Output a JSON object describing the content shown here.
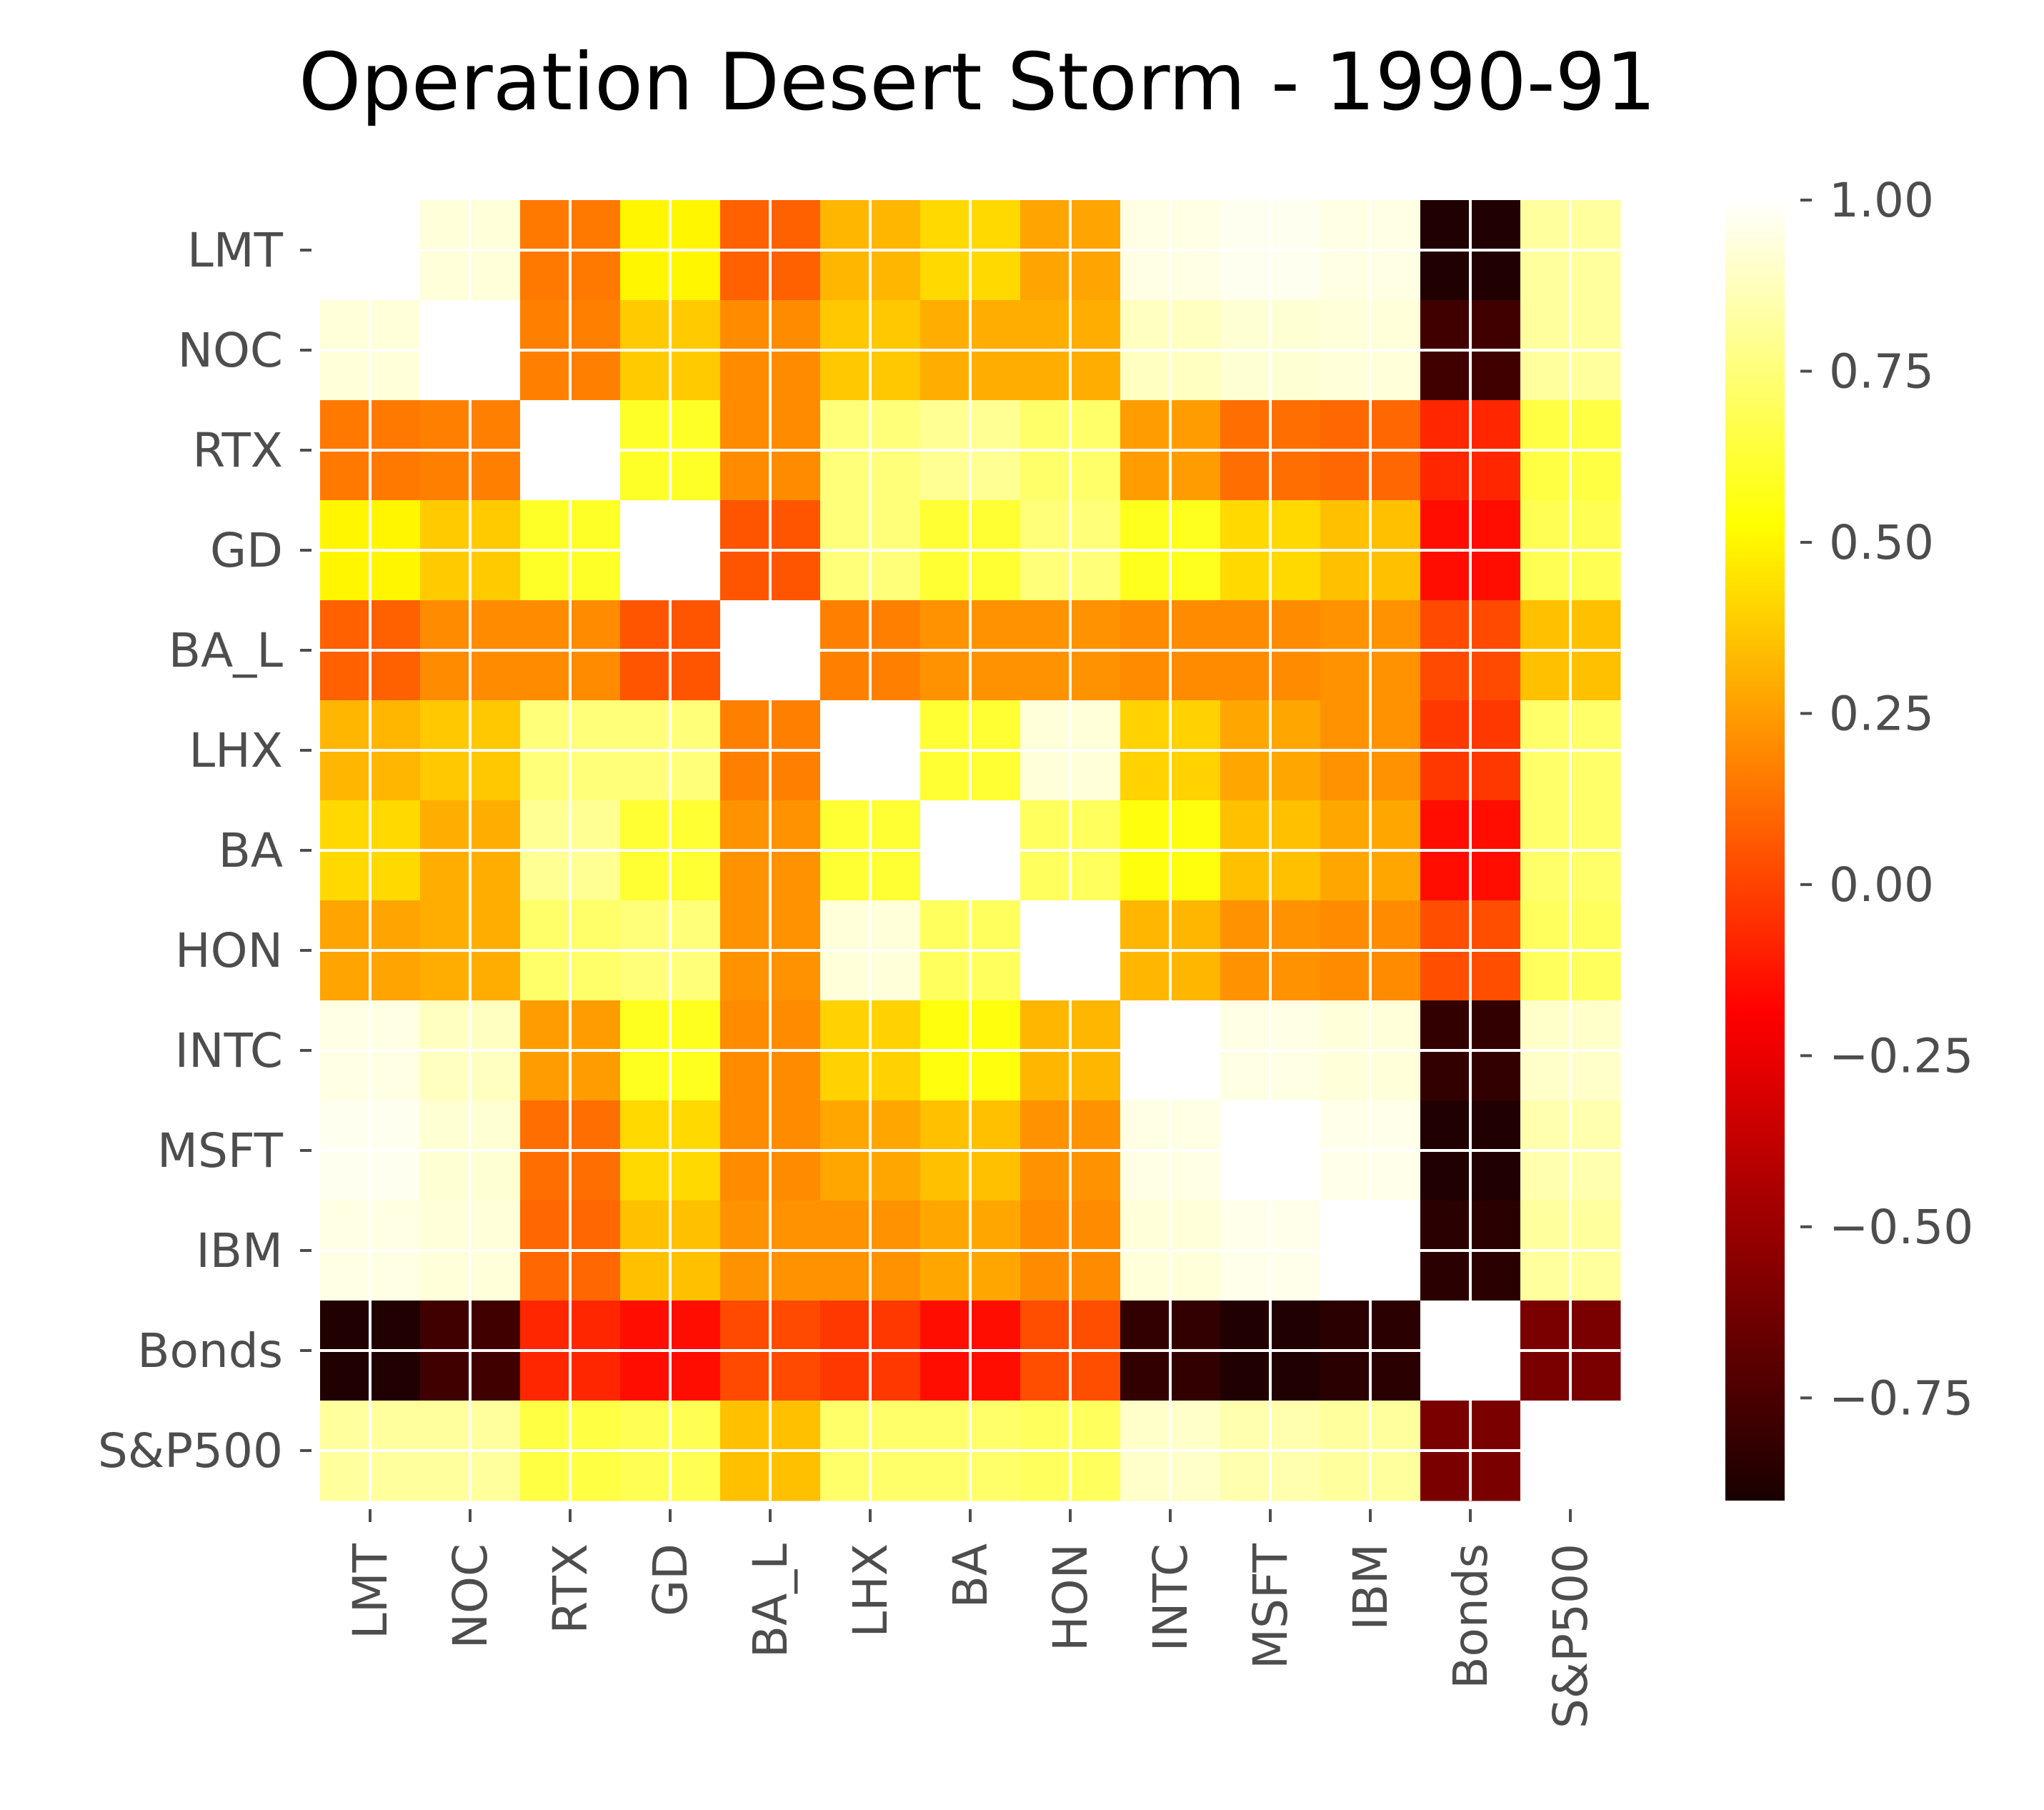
{
  "chart_data": {
    "type": "heatmap",
    "title": "Operation Desert Storm - 1990-91",
    "labels": [
      "LMT",
      "NOC",
      "RTX",
      "GD",
      "BA_L",
      "LHX",
      "BA",
      "HON",
      "INTC",
      "MSFT",
      "IBM",
      "Bonds",
      "S&P500"
    ],
    "colormap": "hot",
    "vmin": -0.9,
    "vmax": 1.0,
    "colorbar_ticks": [
      1.0,
      0.75,
      0.5,
      0.25,
      0.0,
      -0.25,
      -0.5,
      -0.75
    ],
    "colorbar_tick_labels": [
      "1.00",
      "0.75",
      "0.50",
      "0.25",
      "0.00",
      "−0.25",
      "−0.50",
      "−0.75"
    ],
    "grid": true,
    "matrix": [
      [
        1.0,
        0.93,
        0.15,
        0.5,
        0.08,
        0.32,
        0.42,
        0.27,
        0.95,
        0.97,
        0.95,
        -0.88,
        0.82
      ],
      [
        0.93,
        1.0,
        0.17,
        0.38,
        0.2,
        0.37,
        0.3,
        0.3,
        0.88,
        0.92,
        0.93,
        -0.78,
        0.82
      ],
      [
        0.15,
        0.17,
        1.0,
        0.6,
        0.2,
        0.75,
        0.8,
        0.72,
        0.25,
        0.12,
        0.1,
        -0.08,
        0.65
      ],
      [
        0.5,
        0.38,
        0.6,
        1.0,
        0.05,
        0.75,
        0.62,
        0.75,
        0.58,
        0.42,
        0.35,
        -0.15,
        0.68
      ],
      [
        0.08,
        0.2,
        0.2,
        0.05,
        1.0,
        0.17,
        0.22,
        0.22,
        0.2,
        0.2,
        0.22,
        0.02,
        0.35
      ],
      [
        0.32,
        0.37,
        0.75,
        0.75,
        0.17,
        1.0,
        0.62,
        0.93,
        0.4,
        0.28,
        0.22,
        -0.03,
        0.72
      ],
      [
        0.42,
        0.3,
        0.8,
        0.62,
        0.22,
        0.62,
        1.0,
        0.7,
        0.55,
        0.35,
        0.28,
        -0.15,
        0.72
      ],
      [
        0.27,
        0.3,
        0.72,
        0.75,
        0.22,
        0.93,
        0.7,
        1.0,
        0.32,
        0.22,
        0.2,
        0.03,
        0.7
      ],
      [
        0.95,
        0.88,
        0.25,
        0.58,
        0.2,
        0.4,
        0.55,
        0.32,
        1.0,
        0.95,
        0.93,
        -0.82,
        0.9
      ],
      [
        0.97,
        0.92,
        0.12,
        0.42,
        0.2,
        0.28,
        0.35,
        0.22,
        0.95,
        1.0,
        0.96,
        -0.88,
        0.85
      ],
      [
        0.95,
        0.93,
        0.1,
        0.35,
        0.22,
        0.22,
        0.28,
        0.2,
        0.93,
        0.96,
        1.0,
        -0.85,
        0.82
      ],
      [
        -0.88,
        -0.78,
        -0.08,
        -0.15,
        0.02,
        -0.03,
        -0.15,
        0.03,
        -0.82,
        -0.88,
        -0.85,
        1.0,
        -0.6
      ],
      [
        0.82,
        0.82,
        0.65,
        0.68,
        0.35,
        0.72,
        0.72,
        0.7,
        0.9,
        0.85,
        0.82,
        -0.6,
        1.0
      ]
    ]
  }
}
